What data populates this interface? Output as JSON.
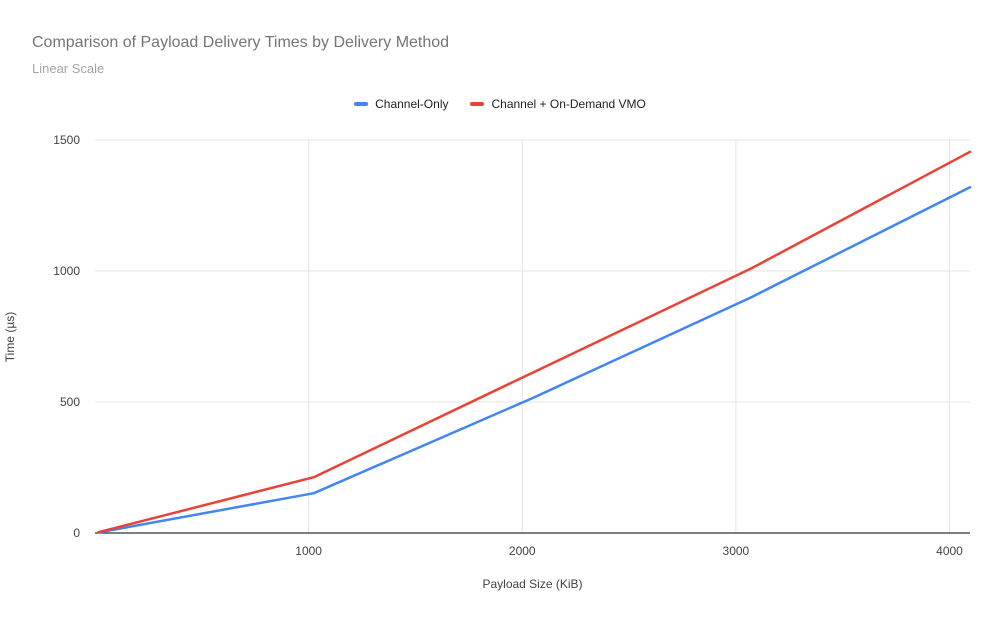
{
  "header": {
    "title": "Comparison of Payload Delivery Times by Delivery Method",
    "subtitle": "Linear Scale"
  },
  "chart_data": {
    "type": "line",
    "title": "Comparison of Payload Delivery Times by Delivery Method",
    "subtitle": "Linear Scale",
    "xlabel": "Payload Size (KiB)",
    "ylabel": "Time (µs)",
    "x": [
      16,
      1024,
      2048,
      3072,
      4096
    ],
    "series": [
      {
        "name": "Channel-Only",
        "color": "#4285F4",
        "values": [
          2,
          152,
          515,
          900,
          1320
        ]
      },
      {
        "name": "Channel + On-Demand VMO",
        "color": "#EA4335",
        "values": [
          3,
          213,
          612,
          1010,
          1455
        ]
      }
    ],
    "xlim": [
      0,
      4096
    ],
    "ylim": [
      0,
      1500
    ],
    "x_ticks": [
      1000,
      2000,
      3000,
      4000
    ],
    "x_tick_labels": [
      "1000",
      "2000",
      "3000",
      "4000"
    ],
    "y_ticks": [
      0,
      500,
      1000,
      1500
    ],
    "y_tick_labels": [
      "0",
      "500",
      "1000",
      "1500"
    ],
    "grid": true,
    "legend_position": "top-center"
  },
  "colors": {
    "grid": "#e6e6e6",
    "axis_line": "#333333",
    "tick_label": "#424242",
    "title": "#757575",
    "subtitle": "#a5a5a5",
    "background": "#ffffff"
  }
}
